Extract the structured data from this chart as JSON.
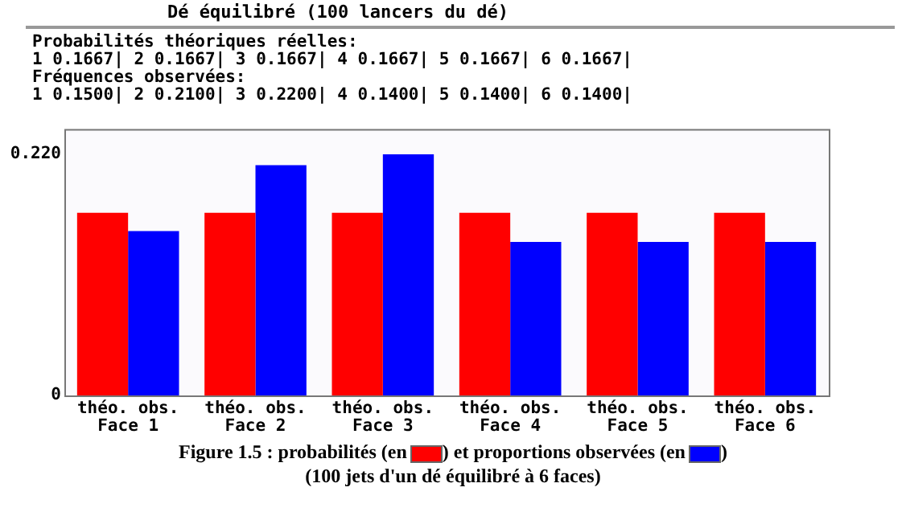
{
  "chart_data": {
    "type": "bar",
    "title": "Dé équilibré (100 lancers du dé)",
    "categories": [
      "Face 1",
      "Face 2",
      "Face 3",
      "Face 4",
      "Face 5",
      "Face 6"
    ],
    "series": [
      {
        "name": "théo.",
        "color": "#ff0000",
        "values": [
          0.1667,
          0.1667,
          0.1667,
          0.1667,
          0.1667,
          0.1667
        ]
      },
      {
        "name": "obs.",
        "color": "#0000ff",
        "values": [
          0.15,
          0.21,
          0.22,
          0.14,
          0.14,
          0.14
        ]
      }
    ],
    "ylim": [
      0,
      0.243
    ],
    "yticks": [
      0,
      {
        "value": 0.22,
        "label": "0.220"
      }
    ],
    "grid": false,
    "legend": false,
    "annotations": [
      "Probabilités théoriques réelles:",
      "1 0.1667| 2 0.1667| 3 0.1667| 4 0.1667| 5 0.1667| 6 0.1667|",
      "Fréquences observées:",
      "1 0.1500| 2 0.2100| 3 0.2200| 4 0.1400| 5 0.1400| 6 0.1400|",
      "Figure 1.5 : probabilités (en",
      ") et proportions observées (en",
      ")",
      "(100 jets d'un dé équilibré à 6 faces)"
    ]
  }
}
